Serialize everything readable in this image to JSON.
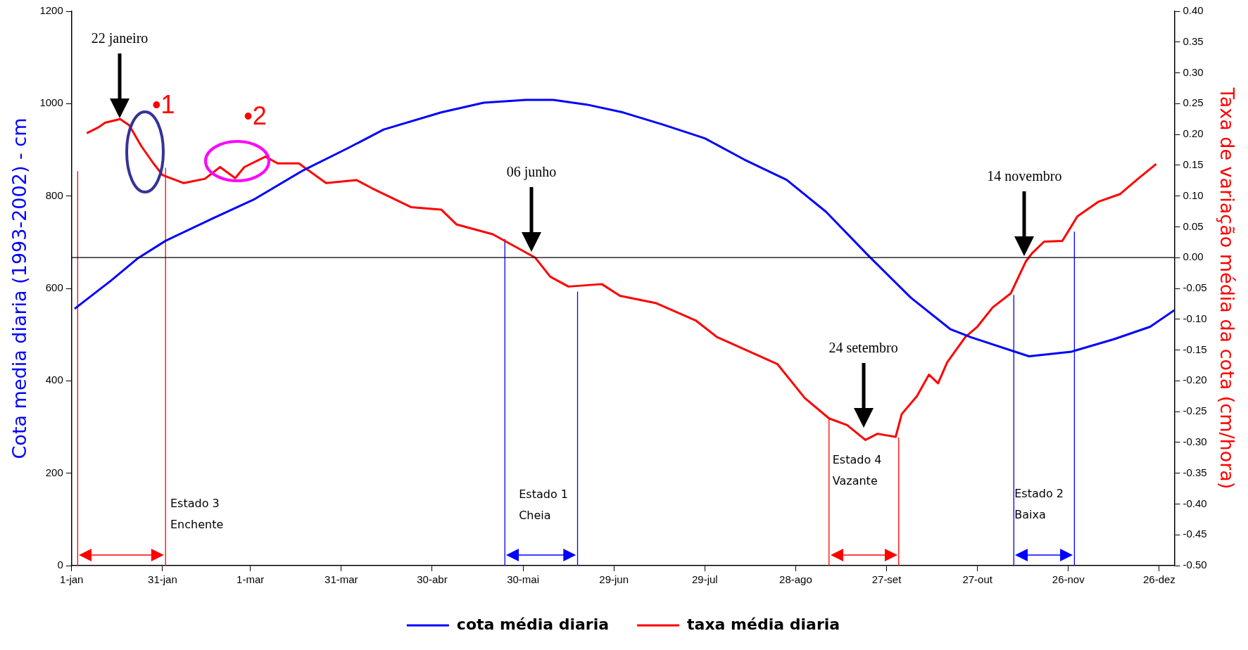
{
  "chart_data": {
    "type": "line",
    "legend": "bottom",
    "marker": "none",
    "grid": false,
    "ylabel": "Cota media diaria (1993-2002) - cm",
    "y2label": "Taxa de variação média da cota (cm/hora)",
    "xlim": [
      "--01-01",
      "--12-31"
    ],
    "ylim": [
      0,
      1200
    ],
    "y2lim": [
      -0.5,
      0.4
    ],
    "xticks": [
      {
        "value": "--01-01",
        "label": "1-jan"
      },
      {
        "value": "--01-31",
        "label": "31-jan"
      },
      {
        "value": "--03-01",
        "label": "1-mar"
      },
      {
        "value": "--03-31",
        "label": "31-mar"
      },
      {
        "value": "--04-30",
        "label": "30-abr"
      },
      {
        "value": "--05-30",
        "label": "30-mai"
      },
      {
        "value": "--06-29",
        "label": "29-jun"
      },
      {
        "value": "--07-29",
        "label": "29-jul"
      },
      {
        "value": "--08-28",
        "label": "28-ago"
      },
      {
        "value": "--09-27",
        "label": "27-set"
      },
      {
        "value": "--10-27",
        "label": "27-out"
      },
      {
        "value": "--11-26",
        "label": "26-nov"
      },
      {
        "value": "--12-26",
        "label": "26-dez"
      }
    ],
    "yticks": [
      0,
      200,
      400,
      600,
      800,
      1000,
      1200
    ],
    "y2ticks": [
      {
        "value": 0.4,
        "label": "0.40"
      },
      {
        "value": 0.35,
        "label": "0.35"
      },
      {
        "value": 0.3,
        "label": "0.30"
      },
      {
        "value": 0.25,
        "label": "0.25"
      },
      {
        "value": 0.2,
        "label": "0.20"
      },
      {
        "value": 0.15,
        "label": "0.15"
      },
      {
        "value": 0.1,
        "label": "0.10"
      },
      {
        "value": 0.05,
        "label": "0.05"
      },
      {
        "value": 0,
        "label": "0.00"
      },
      {
        "value": -0.05,
        "label": "-0.05"
      },
      {
        "value": -0.1,
        "label": "-0.10"
      },
      {
        "value": -0.15,
        "label": "-0.15"
      },
      {
        "value": -0.2,
        "label": "-0.20"
      },
      {
        "value": -0.25,
        "label": "-0.25"
      },
      {
        "value": -0.3,
        "label": "-0.30"
      },
      {
        "value": -0.35,
        "label": "-0.35"
      },
      {
        "value": -0.4,
        "label": "-0.40"
      },
      {
        "value": -0.45,
        "label": "-0.45"
      },
      {
        "value": -0.5,
        "label": "-0.50"
      }
    ],
    "ref_lines": [
      {
        "axis": "y2",
        "value": 0,
        "color": "#000000"
      }
    ],
    "series": [
      {
        "name": "cota média diaria",
        "color": "#0000ff",
        "x": [
          "--01-02",
          "--01-14",
          "--01-23",
          "--02-01",
          "--02-17",
          "--03-02",
          "--03-18",
          "--04-02",
          "--04-14",
          "--05-03",
          "--05-17",
          "--05-31",
          "--06-09",
          "--06-20",
          "--07-02",
          "--07-15",
          "--07-29",
          "--08-11",
          "--08-25",
          "--09-07",
          "--09-21",
          "--10-05",
          "--10-18",
          "--10-25",
          "--11-13",
          "--11-27",
          "--12-11",
          "--12-23",
          "--12-31"
        ],
        "values": [
          556,
          617,
          666,
          703,
          753,
          792,
          854,
          903,
          944,
          981,
          1002,
          1008,
          1008,
          998,
          981,
          955,
          925,
          879,
          835,
          766,
          671,
          580,
          512,
          494,
          453,
          463,
          490,
          517,
          553
        ]
      },
      {
        "name": "taxa média diaria",
        "color": "#ff0000",
        "axis": "y2",
        "x": [
          "--01-06",
          "--01-10",
          "--01-12",
          "--01-17",
          "--01-20",
          "--01-24",
          "--01-28",
          "--01-31",
          "--02-07",
          "--02-14",
          "--02-19",
          "--02-24",
          "--02-27",
          "--03-06",
          "--03-10",
          "--03-17",
          "--03-26",
          "--04-05",
          "--04-10",
          "--04-23",
          "--05-03",
          "--05-08",
          "--05-20",
          "--06-03",
          "--06-08",
          "--06-14",
          "--06-25",
          "--07-01",
          "--07-13",
          "--07-26",
          "--08-02",
          "--08-08",
          "--08-22",
          "--08-31",
          "--09-08",
          "--09-14",
          "--09-20",
          "--09-24",
          "--09-30",
          "--10-02",
          "--10-07",
          "--10-11",
          "--10-14",
          "--10-17",
          "--10-23",
          "--10-27",
          "--11-01",
          "--11-07",
          "--11-12",
          "--11-14",
          "--11-18",
          "--11-24",
          "--11-29",
          "--12-06",
          "--12-13",
          "--12-19",
          "--12-25"
        ],
        "values": [
          0.202,
          0.212,
          0.219,
          0.225,
          0.215,
          0.181,
          0.153,
          0.134,
          0.121,
          0.128,
          0.147,
          0.129,
          0.147,
          0.164,
          0.153,
          0.153,
          0.121,
          0.126,
          0.113,
          0.082,
          0.078,
          0.054,
          0.038,
          0.0,
          -0.031,
          -0.047,
          -0.043,
          -0.062,
          -0.074,
          -0.102,
          -0.129,
          -0.142,
          -0.173,
          -0.228,
          -0.261,
          -0.272,
          -0.296,
          -0.286,
          -0.291,
          -0.254,
          -0.225,
          -0.19,
          -0.204,
          -0.17,
          -0.129,
          -0.112,
          -0.081,
          -0.058,
          -0.006,
          0.007,
          0.026,
          0.027,
          0.067,
          0.091,
          0.103,
          0.128,
          0.152
        ]
      },
      {
        "color": "#ff0000",
        "x": [
          "--01-03",
          "--01-03"
        ],
        "values": [
          0,
          854
        ]
      },
      {
        "color": "#ff0000",
        "x": [
          "--02-01",
          "--02-01"
        ],
        "values": [
          0,
          861
        ]
      },
      {
        "color": "#0000ff",
        "x": [
          "--05-24",
          "--05-24"
        ],
        "values": [
          0,
          707
        ]
      },
      {
        "color": "#0000ff",
        "x": [
          "--06-17",
          "--06-17"
        ],
        "values": [
          0,
          593
        ]
      },
      {
        "color": "#ff0000",
        "x": [
          "--09-08",
          "--09-08"
        ],
        "values": [
          0,
          318
        ]
      },
      {
        "color": "#ff0000",
        "x": [
          "--10-01",
          "--10-01"
        ],
        "values": [
          0,
          277
        ]
      },
      {
        "color": "#0000ff",
        "x": [
          "--11-08",
          "--11-08"
        ],
        "values": [
          0,
          586
        ]
      },
      {
        "color": "#0000ff",
        "x": [
          "--11-28",
          "--11-28"
        ],
        "values": [
          0,
          723
        ]
      }
    ],
    "annotations": [
      "22 janeiro",
      "06 junho",
      "24 setembro",
      "14 novembro",
      "Estado 3\nEnchente",
      "Estado 1\nCheia",
      "Estado 4\nVazante",
      "Estado 2\nBaixa",
      "•1",
      "•2"
    ]
  }
}
